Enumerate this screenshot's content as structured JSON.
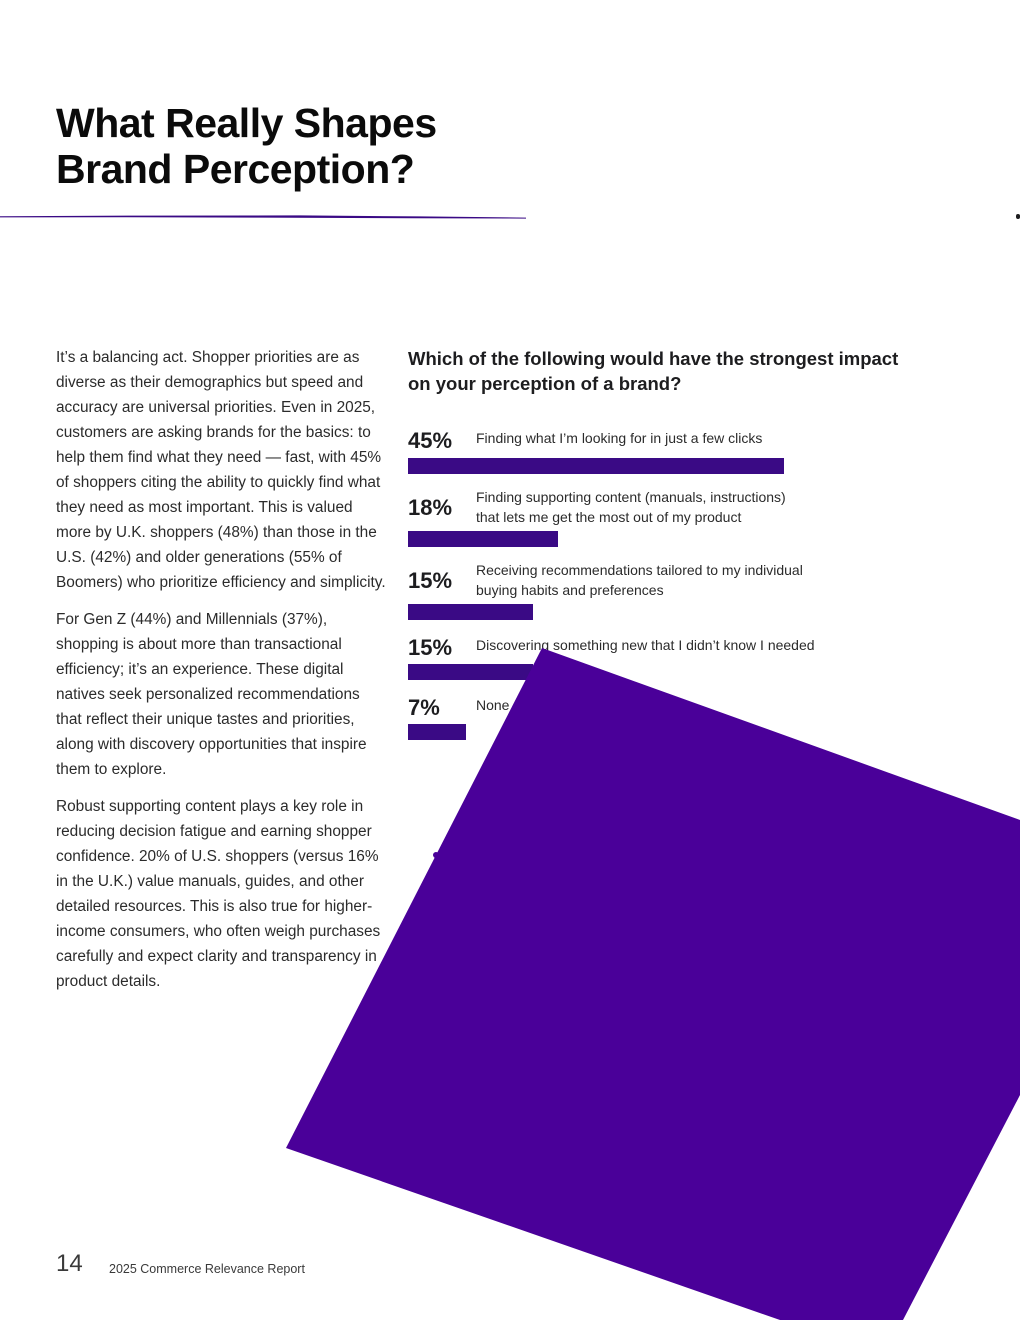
{
  "title": {
    "line1": "What Really Shapes",
    "line2": "Brand Perception?"
  },
  "colors": {
    "accent": "#3a0a85",
    "shape": "#4a0099"
  },
  "body": {
    "p1": "It’s a balancing act. Shopper priorities are as diverse as their demographics but speed and accuracy are universal priorities. Even in 2025, customers are asking brands for the basics: to help them find what they need — fast, with 45% of shoppers citing the ability to quickly find what they need as most important. This is valued more by U.K. shoppers (48%) than those in the U.S. (42%) and older generations (55% of Boomers) who prioritize efficiency and simplicity.",
    "p2": "For Gen Z (44%) and Millennials (37%), shopping is about more than transactional efficiency; it’s an experience. These digital natives seek personalized recommendations that reflect their unique tastes and priorities, along with discovery opportunities that inspire them to explore.",
    "p3": "Robust supporting content plays a key role in reducing decision fatigue and earning shopper confidence. 20% of U.S. shoppers (versus 16% in the U.K.) value manuals, guides, and other detailed resources. This is also true for higher-income consumers, who often weigh purchases carefully and expect clarity and transparency in product details."
  },
  "chart_data": {
    "type": "bar",
    "title_line1": "Which of the following would have the strongest impact",
    "title_line2": "on your perception of a brand?",
    "xlim": [
      0,
      45
    ],
    "items": [
      {
        "pct_label": "45%",
        "value": 45,
        "label_lines": [
          "Finding what I’m looking for in just a few clicks"
        ]
      },
      {
        "pct_label": "18%",
        "value": 18,
        "label_lines": [
          "Finding supporting content (manuals, instructions)",
          "that lets me get the most out of my product"
        ]
      },
      {
        "pct_label": "15%",
        "value": 15,
        "label_lines": [
          "Receiving recommendations tailored to my individual",
          "buying habits and preferences"
        ]
      },
      {
        "pct_label": "15%",
        "value": 15,
        "label_lines": [
          "Discovering something new that I didn’t know I needed"
        ]
      },
      {
        "pct_label": "7%",
        "value": 7,
        "label_lines": [
          "None"
        ]
      }
    ]
  },
  "footer": {
    "page_number": "14",
    "report_name": "2025 Commerce Relevance Report"
  }
}
